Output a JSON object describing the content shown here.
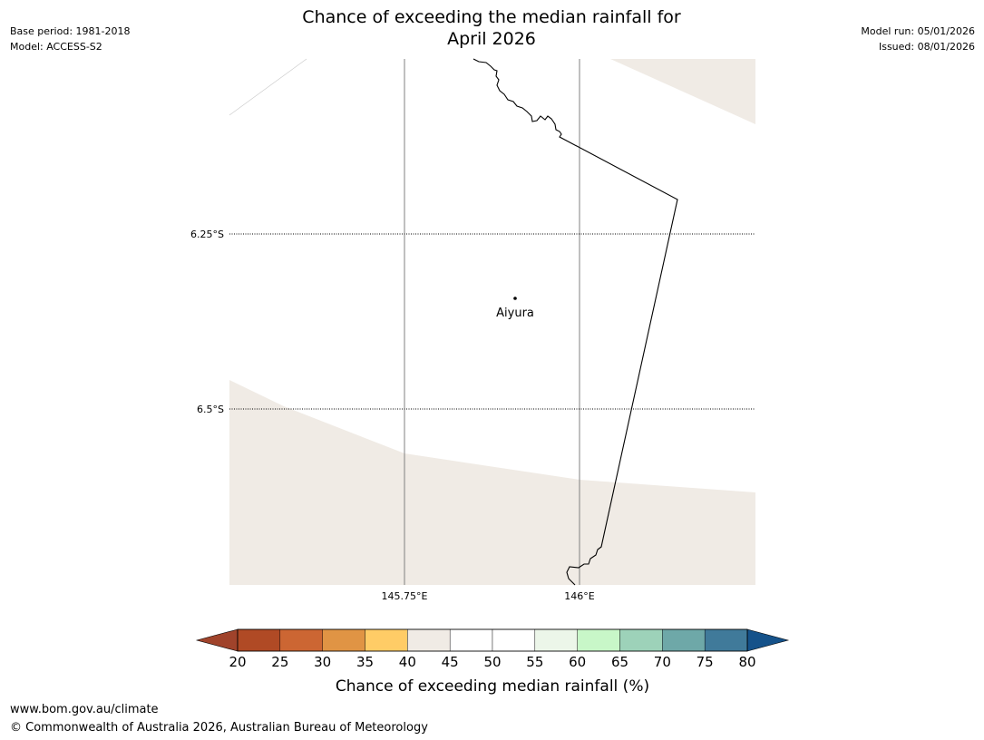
{
  "title": {
    "line1": "Chance of exceeding the median rainfall for",
    "line2": "April 2026"
  },
  "meta_left": {
    "base_period": "Base period: 1981-2018",
    "model": "Model: ACCESS-S2"
  },
  "meta_right": {
    "model_run": "Model run: 05/01/2026",
    "issued": "Issued: 08/01/2026"
  },
  "map": {
    "latitude_labels": [
      "6.25°S",
      "6.5°S"
    ],
    "longitude_labels": [
      "145.75°E",
      "146°E"
    ],
    "place": "Aiyura",
    "land_fill_color": "#ffffff",
    "shade_fill_color": "#f0ebe5"
  },
  "colorbar": {
    "ticks": [
      "20",
      "25",
      "30",
      "35",
      "40",
      "45",
      "50",
      "55",
      "60",
      "65",
      "70",
      "75",
      "80"
    ],
    "colors": [
      "#b04a25",
      "#cc6633",
      "#e09444",
      "#ffcc66",
      "#f0ebe5",
      "#ffffff",
      "#ffffff",
      "#ecf6e9",
      "#c8f7c8",
      "#9dd2b9",
      "#6ea8a8",
      "#407a9a"
    ],
    "under_color": "#a0432b",
    "over_color": "#15528a",
    "label": "Chance of exceeding median rainfall (%)"
  },
  "footer": {
    "url": "www.bom.gov.au/climate",
    "copyright": "© Commonwealth of Australia 2026, Australian Bureau of Meteorology"
  }
}
